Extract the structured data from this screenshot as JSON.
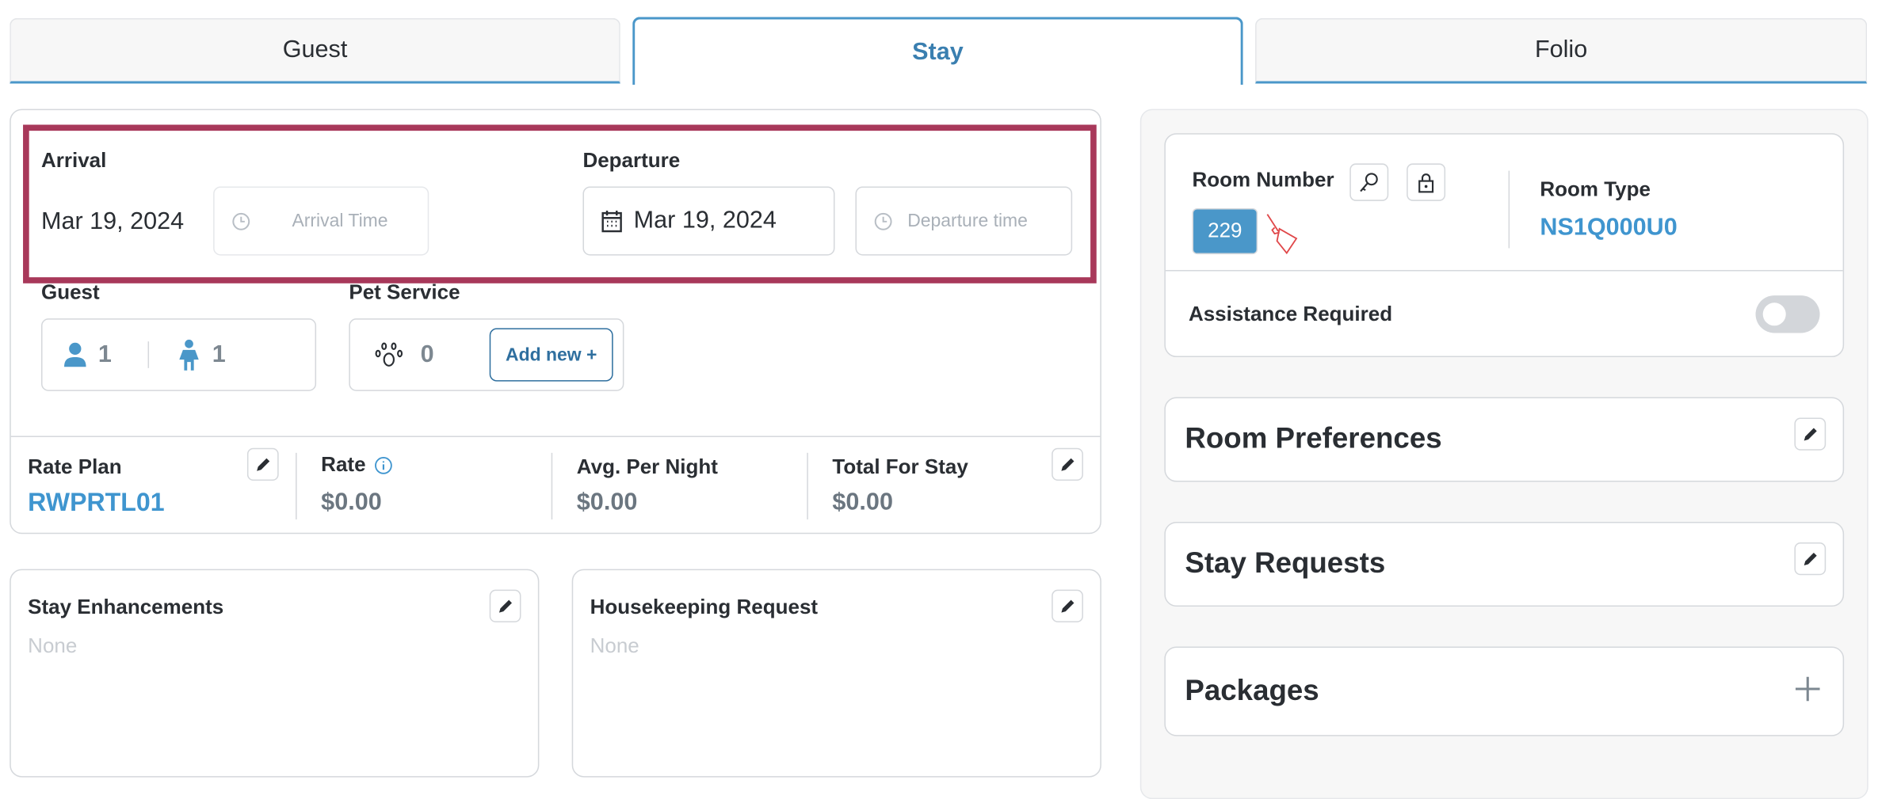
{
  "tabs": [
    {
      "label": "Guest",
      "active": false
    },
    {
      "label": "Stay",
      "active": true
    },
    {
      "label": "Folio",
      "active": false
    }
  ],
  "dates": {
    "arrival_label": "Arrival",
    "arrival_date": "Mar 19, 2024",
    "arrival_time_placeholder": "Arrival Time",
    "departure_label": "Departure",
    "departure_date": "Mar 19, 2024",
    "departure_time_placeholder": "Departure time",
    "highlight_color": "#a8385a"
  },
  "guest": {
    "label": "Guest",
    "adults": "1",
    "children": "1"
  },
  "pet_service": {
    "label": "Pet Service",
    "count": "0",
    "add_label": "Add new +"
  },
  "rates": {
    "rate_plan_label": "Rate Plan",
    "rate_plan_value": "RWPRTL01",
    "rate_label": "Rate",
    "rate_value": "$0.00",
    "avg_label": "Avg. Per Night",
    "avg_value": "$0.00",
    "total_label": "Total For Stay",
    "total_value": "$0.00"
  },
  "stay_enhancements": {
    "title": "Stay Enhancements",
    "value": "None"
  },
  "housekeeping": {
    "title": "Housekeeping Request",
    "value": "None"
  },
  "room": {
    "number_label": "Room Number",
    "number": "229",
    "type_label": "Room Type",
    "type_value": "NS1Q000U0",
    "assistance_label": "Assistance Required",
    "assistance_on": false
  },
  "sections": {
    "room_preferences": "Room Preferences",
    "stay_requests": "Stay Requests",
    "packages": "Packages"
  },
  "colors": {
    "accent": "#4a97c9",
    "link": "#3f95cf",
    "dirty_icon": "#e0484a"
  }
}
